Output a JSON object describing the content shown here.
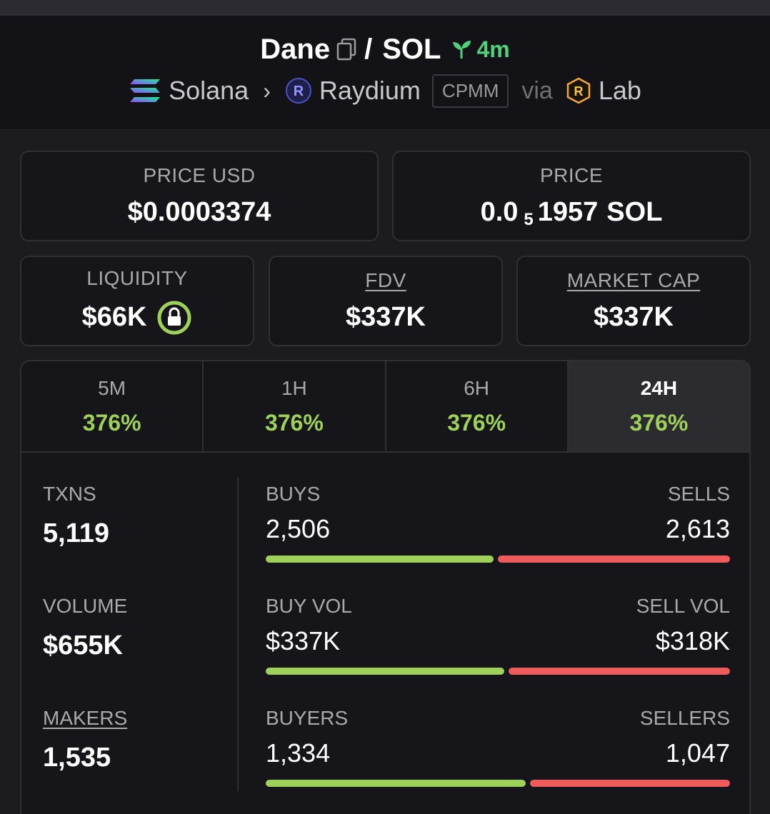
{
  "header": {
    "token": "Dane",
    "pair_separator": "/",
    "quote": "SOL",
    "age": "4m",
    "chain": "Solana",
    "dex": "Raydium",
    "pool_type": "CPMM",
    "via_label": "via",
    "launchpad": "Lab"
  },
  "price_cards": {
    "price_usd": {
      "label": "PRICE USD",
      "value": "$0.0003374"
    },
    "price_native": {
      "label": "PRICE",
      "prefix": "0.0",
      "zero_count": "5",
      "digits": "1957",
      "unit": "SOL"
    }
  },
  "metrics_cards": {
    "liquidity": {
      "label": "LIQUIDITY",
      "value": "$66K"
    },
    "fdv": {
      "label": "FDV",
      "value": "$337K"
    },
    "market_cap": {
      "label": "MARKET CAP",
      "value": "$337K"
    }
  },
  "timeframes": [
    {
      "label": "5M",
      "change": "376%"
    },
    {
      "label": "1H",
      "change": "376%"
    },
    {
      "label": "6H",
      "change": "376%"
    },
    {
      "label": "24H",
      "change": "376%",
      "active": true
    }
  ],
  "stats": {
    "txns": {
      "label": "TXNS",
      "value": "5,119"
    },
    "volume": {
      "label": "VOLUME",
      "value": "$655K"
    },
    "makers": {
      "label": "MAKERS",
      "value": "1,535"
    },
    "buys": {
      "label": "BUYS",
      "value": "2,506",
      "share": 0.49
    },
    "sells": {
      "label": "SELLS",
      "value": "2,613"
    },
    "buy_vol": {
      "label": "BUY VOL",
      "value": "$337K",
      "share": 0.514
    },
    "sell_vol": {
      "label": "SELL VOL",
      "value": "$318K"
    },
    "buyers": {
      "label": "BUYERS",
      "value": "1,334",
      "share": 0.56
    },
    "sellers": {
      "label": "SELLERS",
      "value": "1,047"
    }
  },
  "colors": {
    "positive": "#9ed15a",
    "negative": "#ef5b5b",
    "age": "#50d07a"
  }
}
